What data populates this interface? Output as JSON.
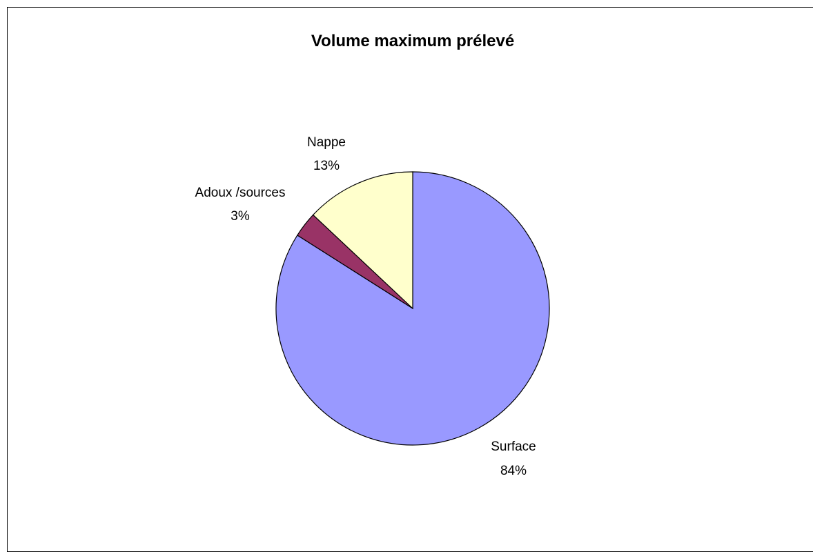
{
  "chart_data": {
    "type": "pie",
    "title": "Volume maximum prélevé",
    "slices": [
      {
        "name": "Surface",
        "value": 84,
        "label": "84%",
        "color": "#9999ff"
      },
      {
        "name": "Adoux /sources",
        "value": 3,
        "label": "3%",
        "color": "#993366"
      },
      {
        "name": "Nappe",
        "value": 13,
        "label": "13%",
        "color": "#ffffcc"
      }
    ],
    "start": "top",
    "direction": "clockwise",
    "legend": "none",
    "border_color": "#000000"
  }
}
